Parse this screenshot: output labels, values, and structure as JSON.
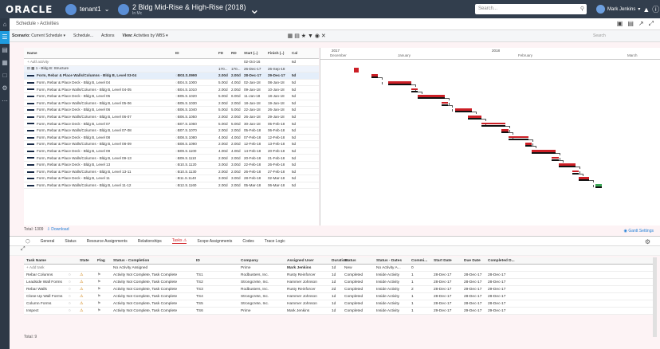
{
  "header": {
    "logo": "ORACLE",
    "tenant": "tenant1",
    "project_name": "2 Bldg Mid-Rise & High-Rise (2018)",
    "project_sub": "In Mc",
    "search_placeholder": "Search...",
    "user": "Mark Jenkins"
  },
  "breadcrumb": {
    "schedule": "Schedule",
    "activities": "Activities"
  },
  "toolbar": {
    "scenario_label": "Scenario:",
    "scenario_value": "Current Schedule",
    "schedule_menu": "Schedule...",
    "actions_menu": "Actions",
    "view_label": "View:",
    "view_value": "Activities by WBS",
    "search_placeholder": "Search"
  },
  "grid": {
    "columns": [
      "Name",
      "ID",
      "FD",
      "RD",
      "Start (..)",
      "Finish (..)",
      "Cal"
    ],
    "add_row": "Add activity",
    "wbs": {
      "name": "1 - Bldg B: Structure",
      "id": "",
      "fd": "170...",
      "rd": "170...",
      "start": "26-Dec-17",
      "finish": "26-Sep-18",
      "cal": ""
    },
    "first": {
      "name": "",
      "start": "02-Oct-16",
      "cal": "6d"
    },
    "rows": [
      {
        "name": "Form, Rebar & Place Walls/Columns - Bldg B, Level 03-04",
        "id": "B03.S.0990",
        "fd": "2.00d",
        "rd": "2.00d",
        "start": "28-Dec-17",
        "finish": "29-Dec-17",
        "cal": "5d"
      },
      {
        "name": "Form, Rebar & Place Deck - Bldg B, Level 04",
        "id": "B04.S.1000",
        "fd": "5.00d",
        "rd": "4.00d",
        "start": "02-Jan-18",
        "finish": "08-Jan-18",
        "cal": "5d"
      },
      {
        "name": "Form, Rebar & Place Walls/Columns - Bldg B, Level 04-05",
        "id": "B04.S.1010",
        "fd": "2.00d",
        "rd": "2.00d",
        "start": "09-Jan-18",
        "finish": "10-Jan-18",
        "cal": "5d"
      },
      {
        "name": "Form, Rebar & Place Deck - Bldg B, Level 05",
        "id": "B05.S.1020",
        "fd": "5.00d",
        "rd": "6.00d",
        "start": "11-Jan-18",
        "finish": "18-Jan-18",
        "cal": "5d"
      },
      {
        "name": "Form, Rebar & Place Walls/Columns - Bldg B, Level 05-06",
        "id": "B05.S.1030",
        "fd": "2.00d",
        "rd": "2.00d",
        "start": "18-Jan-18",
        "finish": "19-Jan-18",
        "cal": "5d"
      },
      {
        "name": "Form, Rebar & Place Deck - Bldg B, Level 06",
        "id": "B06.S.1040",
        "fd": "5.00d",
        "rd": "5.00d",
        "start": "22-Jan-18",
        "finish": "26-Jan-18",
        "cal": "5d"
      },
      {
        "name": "Form, Rebar & Place Walls/Columns - Bldg B, Level 06-07",
        "id": "B06.S.1050",
        "fd": "2.00d",
        "rd": "2.00d",
        "start": "26-Jan-18",
        "finish": "29-Jan-18",
        "cal": "5d"
      },
      {
        "name": "Form, Rebar & Place Deck - Bldg B, Level 07",
        "id": "B07.S.1060",
        "fd": "5.00d",
        "rd": "5.00d",
        "start": "30-Jan-18",
        "finish": "05-Feb-18",
        "cal": "5d"
      },
      {
        "name": "Form, Rebar & Place Walls/Columns - Bldg B, Level 07-08",
        "id": "B07.S.1070",
        "fd": "2.00d",
        "rd": "2.00d",
        "start": "05-Feb-18",
        "finish": "06-Feb-18",
        "cal": "5d"
      },
      {
        "name": "Form, Rebar & Place Deck - Bldg B, Level 08",
        "id": "B08.S.1080",
        "fd": "4.00d",
        "rd": "4.00d",
        "start": "07-Feb-18",
        "finish": "12-Feb-18",
        "cal": "5d"
      },
      {
        "name": "Form, Rebar & Place Walls/Columns - Bldg B, Level 08-09",
        "id": "B08.S.1090",
        "fd": "2.00d",
        "rd": "2.00d",
        "start": "12-Feb-18",
        "finish": "13-Feb-18",
        "cal": "5d"
      },
      {
        "name": "Form, Rebar & Place Deck - Bldg B, Level 09",
        "id": "B09.S.1100",
        "fd": "4.00d",
        "rd": "4.00d",
        "start": "14-Feb-18",
        "finish": "20-Feb-18",
        "cal": "5d"
      },
      {
        "name": "Form, Rebar & Place Walls/Columns - Bldg B, Level 09-13",
        "id": "B09.S.1110",
        "fd": "2.00d",
        "rd": "2.00d",
        "start": "20-Feb-18",
        "finish": "21-Feb-18",
        "cal": "5d"
      },
      {
        "name": "Form, Rebar & Place Deck - Bldg B, Level 13",
        "id": "B10.S.1120",
        "fd": "3.00d",
        "rd": "3.00d",
        "start": "22-Feb-18",
        "finish": "26-Feb-18",
        "cal": "5d"
      },
      {
        "name": "Form, Rebar & Place Walls/Columns - Bldg B, Level 13-11",
        "id": "B10.S.1130",
        "fd": "2.00d",
        "rd": "2.00d",
        "start": "26-Feb-18",
        "finish": "27-Feb-18",
        "cal": "5d"
      },
      {
        "name": "Form, Rebar & Place Deck - Bldg B, Level 11",
        "id": "B11.S.1140",
        "fd": "3.00d",
        "rd": "3.00d",
        "start": "28-Feb-18",
        "finish": "02-Mar-18",
        "cal": "5d"
      },
      {
        "name": "Form, Rebar & Place Walls/Columns - Bldg B, Level 11-12",
        "id": "B12.S.1160",
        "fd": "2.00d",
        "rd": "2.00d",
        "start": "05-Mar-18",
        "finish": "06-Mar-18",
        "cal": "5d"
      }
    ],
    "total": "Total: 1309",
    "download": "Download"
  },
  "gantt": {
    "year1": "2017",
    "year2": "2018",
    "months": [
      "December",
      "January",
      "February",
      "March"
    ],
    "settings": "Gantt Settings"
  },
  "tabs": [
    "General",
    "Status",
    "Resource Assignments",
    "Relationships",
    "Tasks",
    "Scope Assignments",
    "Codes",
    "Trace Logic"
  ],
  "tasks": {
    "columns": [
      "Task Name",
      "State",
      "Flag",
      "Status - Completion",
      "ID",
      "Company",
      "Assigned User",
      "Duration",
      "Status",
      "Status - Dates",
      "Commi...",
      "Start Date",
      "Due Date",
      "Completed D..."
    ],
    "add_row": "Add task",
    "total": "Total: 9",
    "first": {
      "name": "",
      "status_completion": "No Activity Assigned",
      "company": "Prime",
      "user": "Mark Jenkins",
      "duration": "1d",
      "status": "New",
      "status_dates": "No Activity A...",
      "commit": "0"
    },
    "rows": [
      {
        "name": "Rebar Columns",
        "status_completion": "Activity Not Complete, Task Complete",
        "id": "TS1",
        "company": "Rodbusters, Inc.",
        "user": "Rusty Reinforcer",
        "duration": "1d",
        "status": "Completed",
        "status_dates": "Inside Activity",
        "commit": "1",
        "start": "28-Dec-17",
        "due": "28-Dec-17",
        "completed": "28-Dec-17"
      },
      {
        "name": "Leadside Wall Forms",
        "status_completion": "Activity Not Complete, Task Complete",
        "id": "TS2",
        "company": "Strongcrete, Inc.",
        "user": "Hammer Johnson",
        "duration": "1d",
        "status": "Completed",
        "status_dates": "Inside Activity",
        "commit": "1",
        "start": "28-Dec-17",
        "due": "28-Dec-17",
        "completed": "28-Dec-17"
      },
      {
        "name": "Rebar Walls",
        "status_completion": "Activity Not Complete, Task Complete",
        "id": "TS3",
        "company": "Rodbusters, Inc.",
        "user": "Rusty Reinforcer",
        "duration": "2d",
        "status": "Completed",
        "status_dates": "Inside Activity",
        "commit": "2",
        "start": "28-Dec-17",
        "due": "29-Dec-17",
        "completed": "29-Dec-17"
      },
      {
        "name": "Close-Up Wall Forms",
        "status_completion": "Activity Not Complete, Task Complete",
        "id": "TS4",
        "company": "Strongcrete, Inc.",
        "user": "Hammer Johnson",
        "duration": "1d",
        "status": "Completed",
        "status_dates": "Inside Activity",
        "commit": "1",
        "start": "28-Dec-17",
        "due": "28-Dec-17",
        "completed": "28-Dec-17"
      },
      {
        "name": "Column Forms",
        "status_completion": "Activity Not Complete, Task Complete",
        "id": "TS5",
        "company": "Strongcrete, Inc.",
        "user": "Hammer Johnson",
        "duration": "1d",
        "status": "Completed",
        "status_dates": "Inside Activity",
        "commit": "1",
        "start": "28-Dec-17",
        "due": "28-Dec-17",
        "completed": "28-Dec-17"
      },
      {
        "name": "Inspect",
        "status_completion": "Activity Not Complete, Task Complete",
        "id": "TS6",
        "company": "Prime",
        "user": "Mark Jenkins",
        "duration": "1d",
        "status": "Completed",
        "status_dates": "Inside Activity",
        "commit": "1",
        "start": "29-Dec-17",
        "due": "29-Dec-17",
        "completed": "29-Dec-17"
      }
    ]
  }
}
